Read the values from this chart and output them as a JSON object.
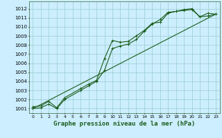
{
  "bg_color": "#cceeff",
  "grid_color": "#99cccc",
  "line_color": "#1a5c1a",
  "xlabel": "Graphe pression niveau de la mer (hPa)",
  "xlim": [
    -0.5,
    23.5
  ],
  "ylim": [
    1000.5,
    1012.8
  ],
  "yticks": [
    1001,
    1002,
    1003,
    1004,
    1005,
    1006,
    1007,
    1008,
    1009,
    1010,
    1011,
    1012
  ],
  "xticks": [
    0,
    1,
    2,
    3,
    4,
    5,
    6,
    7,
    8,
    9,
    10,
    11,
    12,
    13,
    14,
    15,
    16,
    17,
    18,
    19,
    20,
    21,
    22,
    23
  ],
  "series1_x": [
    0,
    1,
    2,
    3,
    4,
    6,
    7,
    8,
    9,
    10,
    11,
    12,
    13,
    14,
    15,
    16,
    17,
    18,
    19,
    20,
    21,
    22,
    23
  ],
  "series1_y": [
    1001.2,
    1001.3,
    1001.8,
    1001.1,
    1002.2,
    1003.2,
    1003.7,
    1004.1,
    1006.5,
    1008.5,
    1008.3,
    1008.4,
    1009.0,
    1009.6,
    1010.4,
    1010.5,
    1011.5,
    1011.7,
    1011.8,
    1011.9,
    1011.1,
    1011.5,
    1011.4
  ],
  "series2_x": [
    0,
    1,
    2,
    3,
    4,
    6,
    7,
    8,
    9,
    10,
    11,
    12,
    13,
    14,
    15,
    16,
    17,
    18,
    19,
    20,
    21,
    22,
    23
  ],
  "series2_y": [
    1001.0,
    1001.1,
    1001.5,
    1001.0,
    1002.0,
    1003.0,
    1003.5,
    1004.0,
    1005.2,
    1007.6,
    1007.9,
    1008.1,
    1008.6,
    1009.5,
    1010.3,
    1010.8,
    1011.6,
    1011.7,
    1011.9,
    1012.0,
    1011.1,
    1011.2,
    1011.4
  ],
  "series3_x": [
    0,
    23
  ],
  "series3_y": [
    1001.0,
    1011.4
  ],
  "marker_size": 3.5,
  "linewidth": 0.8,
  "tick_fontsize": 5.5,
  "xlabel_fontsize": 6.5
}
